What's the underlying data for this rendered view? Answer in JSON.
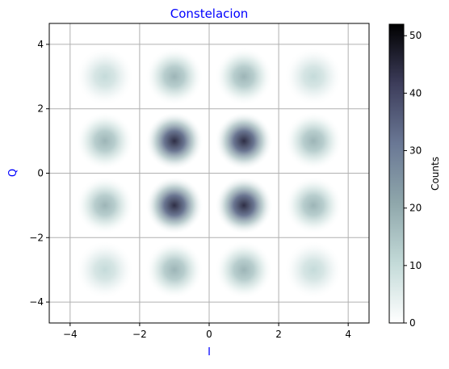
{
  "chart_data": {
    "type": "heatmap",
    "title": "Constelacion",
    "title_color": "#0000ff",
    "xlabel": "I",
    "ylabel": "Q",
    "axis_label_color": "#0000ff",
    "xlim": [
      -4.6,
      4.6
    ],
    "ylim": [
      -4.65,
      4.65
    ],
    "x_ticks": [
      -4,
      -2,
      0,
      2,
      4
    ],
    "y_ticks": [
      -4,
      -2,
      0,
      2,
      4
    ],
    "x_tick_labels": [
      "−4",
      "−2",
      "0",
      "2",
      "4"
    ],
    "y_tick_labels": [
      "−4",
      "−2",
      "0",
      "2",
      "4"
    ],
    "grid": true,
    "constellation_points": {
      "I": [
        -3,
        -1,
        1,
        3
      ],
      "Q": [
        3,
        1,
        -1,
        -3
      ]
    },
    "cluster_peak_counts": [
      [
        10,
        18,
        18,
        10
      ],
      [
        18,
        44,
        44,
        18
      ],
      [
        18,
        44,
        44,
        18
      ],
      [
        10,
        18,
        18,
        10
      ]
    ],
    "colorbar": {
      "label": "Counts",
      "min": 0,
      "max": 52,
      "ticks": [
        0,
        10,
        20,
        30,
        40,
        50
      ],
      "tick_labels": [
        "0",
        "10",
        "20",
        "30",
        "40",
        "50"
      ],
      "colormap": "bone_r"
    }
  }
}
